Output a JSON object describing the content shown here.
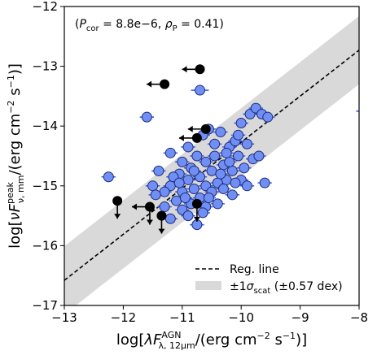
{
  "chart_data": {
    "type": "scatter",
    "title": "",
    "annotation": {
      "open": "(",
      "pcor_sym": "P",
      "pcor_sub": "cor",
      "pcor_val": " = 8.8e−6, ",
      "rho_sym": "ρ",
      "rho_sub": "P",
      "rho_val": " = 0.41)"
    },
    "xlabel": {
      "prefix": "log[",
      "lambda": "λ",
      "F": "F",
      "sup": "AGN",
      "sub": "λ, 12μm",
      "suffix": "/(erg cm",
      "exp": "−2",
      "tail": " s",
      "exp2": "−1",
      "close": ")]"
    },
    "ylabel": {
      "prefix": "log[",
      "nu": "ν",
      "F": "F",
      "sup": "peak",
      "sub": "ν, mm",
      "suffix": "/(erg cm",
      "exp": "−2",
      "tail": " s",
      "exp2": "−1",
      "close": ")]"
    },
    "xlim": [
      -13,
      -8
    ],
    "ylim": [
      -17,
      -12
    ],
    "xticks": [
      "−13",
      "−12",
      "−11",
      "−10",
      "−9",
      "−8"
    ],
    "xtick_values": [
      -13,
      -12,
      -11,
      -10,
      -9,
      -8
    ],
    "yticks": [
      "−17",
      "−16",
      "−15",
      "−14",
      "−13",
      "−12"
    ],
    "ytick_values": [
      -17,
      -16,
      -15,
      -14,
      -13,
      -12
    ],
    "regression": {
      "slope": 0.77,
      "intercept": -6.57
    },
    "scatter_band_dex": 0.57,
    "legend": {
      "position": "lower-right",
      "entries": [
        {
          "label": "Reg. line"
        },
        {
          "pm": "±",
          "one": "1",
          "sigma": "σ",
          "sub": "scat",
          "tail": " (±0.57 dex)"
        }
      ]
    },
    "colors": {
      "detection": "#6f8ff5",
      "detection_edge": "#1f2a7a",
      "errorbar": "#3a62e0",
      "upper_limit": "#000000",
      "band": "#d9d9d9",
      "reg_line": "#000000"
    },
    "series": [
      {
        "name": "detections",
        "points": [
          [
            -10.7,
            -13.4,
            0.15
          ],
          [
            -11.6,
            -13.85,
            0.12
          ],
          [
            -10.55,
            -14.05,
            0.12
          ],
          [
            -10.2,
            -14.35,
            0.12
          ],
          [
            -10.0,
            -13.95,
            0.12
          ],
          [
            -9.85,
            -13.8,
            0.12
          ],
          [
            -9.75,
            -13.7,
            0.12
          ],
          [
            -9.65,
            -13.8,
            0.12
          ],
          [
            -9.55,
            -13.85,
            0.12
          ],
          [
            -10.35,
            -14.1,
            0.12
          ],
          [
            -10.1,
            -14.25,
            0.12
          ],
          [
            -10.45,
            -14.5,
            0.12
          ],
          [
            -10.05,
            -14.5,
            0.12
          ],
          [
            -9.8,
            -14.55,
            0.12
          ],
          [
            -10.6,
            -14.6,
            0.12
          ],
          [
            -10.9,
            -14.35,
            0.12
          ],
          [
            -11.2,
            -14.45,
            0.12
          ],
          [
            -11.0,
            -14.6,
            0.12
          ],
          [
            -11.4,
            -14.75,
            0.12
          ],
          [
            -10.85,
            -14.7,
            0.12
          ],
          [
            -10.3,
            -14.65,
            0.12
          ],
          [
            -10.15,
            -14.75,
            0.12
          ],
          [
            -9.95,
            -14.7,
            0.12
          ],
          [
            -10.5,
            -14.75,
            0.12
          ],
          [
            -10.7,
            -14.85,
            0.12
          ],
          [
            -10.9,
            -14.9,
            0.12
          ],
          [
            -11.05,
            -14.8,
            0.12
          ],
          [
            -10.25,
            -14.9,
            0.12
          ],
          [
            -10.4,
            -14.95,
            0.12
          ],
          [
            -10.0,
            -14.9,
            0.12
          ],
          [
            -9.6,
            -14.95,
            0.12
          ],
          [
            -9.9,
            -15.0,
            0.12
          ],
          [
            -10.6,
            -15.0,
            0.12
          ],
          [
            -10.8,
            -15.05,
            0.12
          ],
          [
            -11.5,
            -15.0,
            0.12
          ],
          [
            -11.2,
            -15.0,
            0.12
          ],
          [
            -11.3,
            -15.1,
            0.12
          ],
          [
            -11.0,
            -15.1,
            0.12
          ],
          [
            -10.7,
            -15.2,
            0.12
          ],
          [
            -10.5,
            -15.1,
            0.12
          ],
          [
            -10.3,
            -15.05,
            0.12
          ],
          [
            -10.15,
            -15.15,
            0.12
          ],
          [
            -11.1,
            -15.25,
            0.12
          ],
          [
            -10.85,
            -15.3,
            0.12
          ],
          [
            -11.3,
            -15.35,
            0.12
          ],
          [
            -11.0,
            -15.4,
            0.12
          ],
          [
            -10.6,
            -15.35,
            0.12
          ],
          [
            -10.9,
            -15.5,
            0.12
          ],
          [
            -11.2,
            -15.55,
            0.12
          ],
          [
            -10.75,
            -15.65,
            0.12
          ],
          [
            -10.95,
            -15.2,
            0.12
          ],
          [
            -12.25,
            -14.85,
            0.12
          ],
          [
            -10.45,
            -14.3,
            0.12
          ],
          [
            -10.2,
            -14.6,
            0.12
          ],
          [
            -10.65,
            -14.15,
            0.12
          ],
          [
            -10.05,
            -14.15,
            0.12
          ],
          [
            -9.9,
            -14.3,
            0.12
          ],
          [
            -10.1,
            -14.95,
            0.12
          ],
          [
            -10.35,
            -14.8,
            0.12
          ],
          [
            -10.75,
            -14.5,
            0.12
          ],
          [
            -11.15,
            -14.85,
            0.12
          ],
          [
            -10.55,
            -15.2,
            0.12
          ],
          [
            -11.45,
            -15.15,
            0.12
          ],
          [
            -10.25,
            -14.45,
            0.12
          ],
          [
            -9.7,
            -14.5,
            0.12
          ],
          [
            -10.8,
            -14.75,
            0.12
          ],
          [
            -11.05,
            -14.95,
            0.12
          ],
          [
            -10.4,
            -15.3,
            0.12
          ],
          [
            -10.65,
            -15.45,
            0.12
          ]
        ]
      },
      {
        "name": "upper_limits",
        "points": [
          [
            -10.7,
            -13.05,
            "left"
          ],
          [
            -11.3,
            -13.3,
            "left"
          ],
          [
            -10.75,
            -14.2,
            "left"
          ],
          [
            -10.6,
            -14.05,
            "left"
          ],
          [
            -12.1,
            -15.25,
            "down"
          ],
          [
            -11.55,
            -15.35,
            "left-down"
          ],
          [
            -11.35,
            -15.5,
            "down"
          ],
          [
            -10.75,
            -15.3,
            "down"
          ]
        ]
      }
    ],
    "edge_marker_y": -13.75
  }
}
